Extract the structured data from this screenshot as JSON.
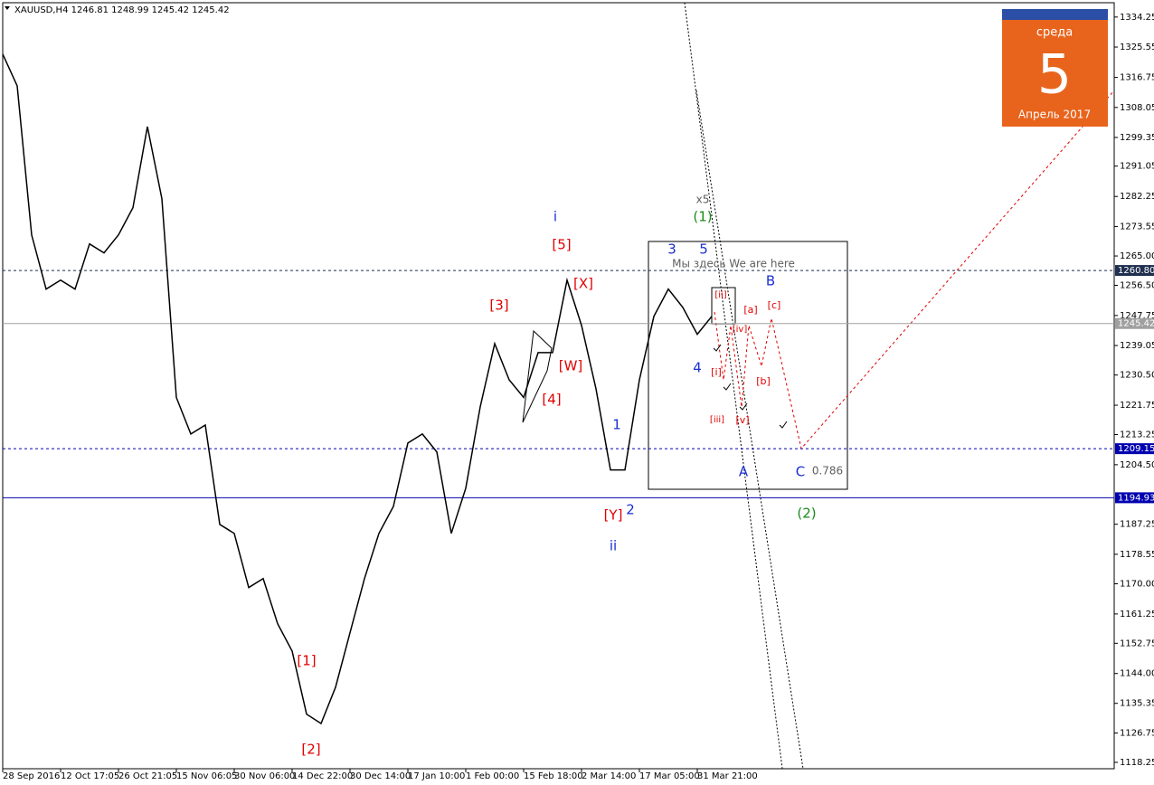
{
  "header": "XAUUSD,H4  1246.81 1248.99 1245.42 1245.42",
  "calendar": {
    "weekday": "среда",
    "day": "5",
    "month": "Апрель 2017"
  },
  "chart_data": {
    "type": "line",
    "color": "#000000",
    "categories": [
      "28 Sep 2016",
      null,
      null,
      null,
      "12 Oct 17:05",
      null,
      null,
      null,
      "26 Oct 21:05",
      null,
      null,
      null,
      "15 Nov 06:05",
      null,
      null,
      null,
      "30 Nov 06:00",
      null,
      null,
      null,
      "14 Dec 22:00",
      null,
      null,
      null,
      "30 Dec 14:00",
      null,
      null,
      null,
      "17 Jan 10:00",
      null,
      null,
      null,
      "1 Feb 00:00",
      null,
      null,
      null,
      "15 Feb 18:00",
      null,
      null,
      null,
      "2 Mar 14:00",
      null,
      null,
      null,
      "17 Mar 05:00",
      null,
      null,
      null,
      "31 Mar 21:00",
      null
    ],
    "values": [
      1323.5,
      1314.3,
      1271.1,
      1255.4,
      1258,
      1255.4,
      1268.5,
      1265.9,
      1271.1,
      1279,
      1302.5,
      1281.6,
      1224,
      1213.4,
      1216,
      1187.2,
      1184.6,
      1168.9,
      1171.5,
      1158.4,
      1150.5,
      1132.2,
      1129.5,
      1140,
      1155.8,
      1171.5,
      1184.6,
      1192.4,
      1210.8,
      1213.4,
      1208.2,
      1184.6,
      1197.7,
      1221.3,
      1239.6,
      1229.1,
      1224,
      1237,
      1237,
      1258,
      1244.9,
      1226.5,
      1203,
      1203,
      1229.1,
      1247.5,
      1255.4,
      1250.1,
      1242.3,
      1247.5
    ],
    "ylim": [
      1116.4,
      1338.4
    ],
    "yticks": [
      1334.25,
      1325.55,
      1316.75,
      1308.05,
      1299.35,
      1291.05,
      1282.25,
      1273.55,
      {
        "value": 1265,
        "label": "1265.00"
      },
      {
        "value": 1256.5,
        "label": "1256.50"
      },
      1247.75,
      1239.05,
      {
        "value": 1230.5,
        "label": "1230.50"
      },
      1221.75,
      1213.25,
      {
        "value": 1204.5,
        "label": "1204.50"
      },
      1187.25,
      1178.55,
      {
        "value": 1170,
        "label": "1170.00"
      },
      1161.25,
      1152.75,
      {
        "value": 1144,
        "label": "1144.00"
      },
      1135.35,
      1126.75,
      1118.25
    ],
    "levels": [
      {
        "value": 1260.8,
        "label": "1260.80",
        "color": "#1f2f4f",
        "dashed": true
      },
      {
        "value": 1245.42,
        "label": "1245.42",
        "color": "#a0a0a0",
        "dashed": false
      },
      {
        "value": 1209.15,
        "label": "1209.15",
        "color": "#0000b0",
        "dashed": true
      },
      {
        "value": 1194.93,
        "label": "1194.93",
        "color": "#0000b0",
        "dashed": false
      }
    ],
    "annotations": [
      {
        "text": "i",
        "color": "#1a2fd0"
      },
      {
        "text": "[5]",
        "color": "#e00000"
      },
      {
        "text": "[X]",
        "color": "#e00000"
      },
      {
        "text": "[3]",
        "color": "#e00000"
      },
      {
        "text": "[W]",
        "color": "#e00000"
      },
      {
        "text": "[4]",
        "color": "#e00000"
      },
      {
        "text": "1",
        "color": "#1a2fd0"
      },
      {
        "text": "2",
        "color": "#1a2fd0"
      },
      {
        "text": "[Y]",
        "color": "#e00000"
      },
      {
        "text": "ii",
        "color": "#1a2fd0"
      },
      {
        "text": "x5",
        "color": "#606060"
      },
      {
        "text": "(1)",
        "color": "#1a8a1a"
      },
      {
        "text": "3",
        "color": "#1a2fd0"
      },
      {
        "text": "5",
        "color": "#1a2fd0"
      },
      {
        "text": "Мы здесь We are here",
        "color": "#606060"
      },
      {
        "text": "B",
        "color": "#1a2fd0"
      },
      {
        "text": "[ii]",
        "color": "#e00000"
      },
      {
        "text": "[a]",
        "color": "#e00000"
      },
      {
        "text": "[c]",
        "color": "#e00000"
      },
      {
        "text": "[iv]",
        "color": "#e00000"
      },
      {
        "text": "4",
        "color": "#1a2fd0"
      },
      {
        "text": "[i]",
        "color": "#e00000"
      },
      {
        "text": "[b]",
        "color": "#e00000"
      },
      {
        "text": "[iii]",
        "color": "#e00000"
      },
      {
        "text": "[v]",
        "color": "#e00000"
      },
      {
        "text": "A",
        "color": "#1a2fd0"
      },
      {
        "text": "C",
        "color": "#1a2fd0"
      },
      {
        "text": "0.786",
        "color": "#606060"
      },
      {
        "text": "(2)",
        "color": "#1a8a1a"
      },
      {
        "text": "[1]",
        "color": "#e00000"
      },
      {
        "text": "[2]",
        "color": "#e00000"
      }
    ]
  }
}
